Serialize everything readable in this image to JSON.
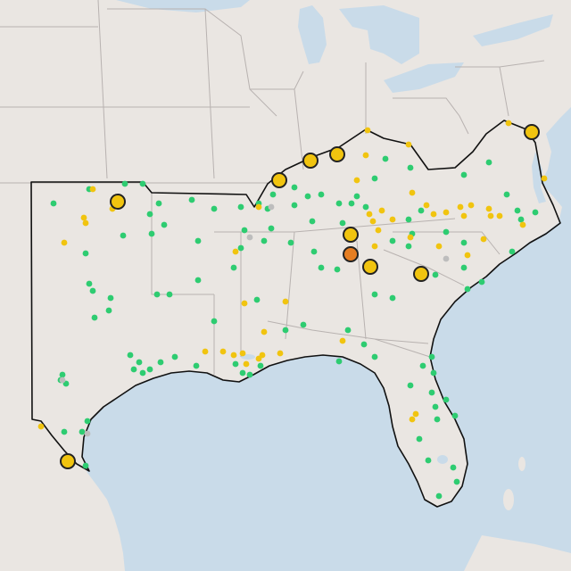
{
  "map": {
    "colors": {
      "water": "#c9dbe9",
      "land": "#eae6e2",
      "region": "#efebe7",
      "border": "#b8b2b0",
      "region_outline": "#111111",
      "small_marker": "#2ecc71",
      "small_marker_alt": "#f1c40f",
      "major_marker_fill": "#f1c40f",
      "major_marker_alert": "#e67e22",
      "major_marker_stroke": "#222222",
      "inactive_marker": "#bdbdbd"
    },
    "marker_types": [
      "green-station",
      "yellow-station",
      "major-site",
      "alert-site",
      "inactive-station"
    ]
  }
}
